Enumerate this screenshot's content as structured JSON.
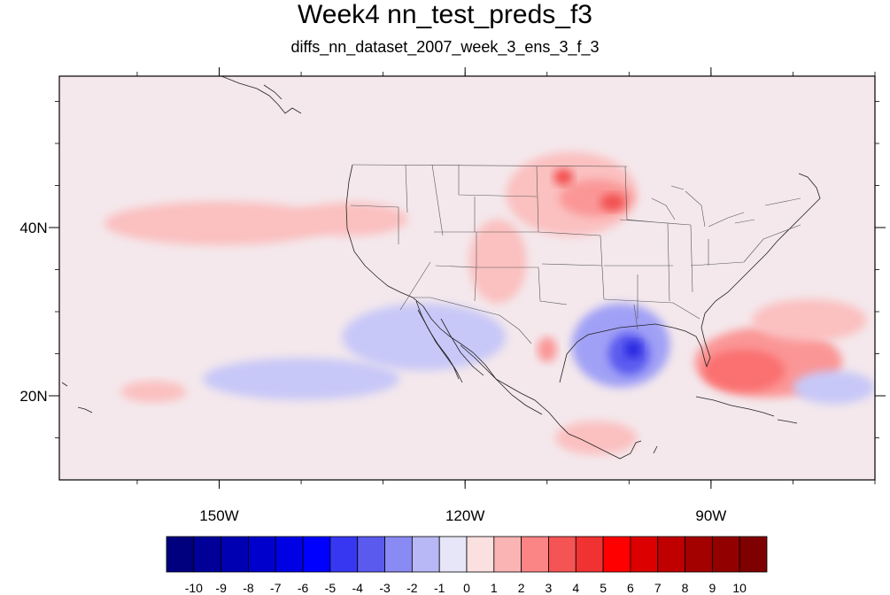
{
  "title": "Week4 nn_test_preds_f3",
  "subtitle": "diffs_nn_dataset_2007_week_3_ens_3_f_3",
  "map": {
    "lon_range": [
      -169.5,
      -70
    ],
    "lat_range": [
      10,
      58
    ],
    "lon_ticks": [
      {
        "value": -150,
        "label": "150W"
      },
      {
        "value": -120,
        "label": "120W"
      },
      {
        "value": -90,
        "label": "90W"
      }
    ],
    "lat_ticks": [
      {
        "value": 40,
        "label": "40N"
      },
      {
        "value": 20,
        "label": "20N"
      }
    ],
    "background_color": "#f4e8ec",
    "blobs": [
      {
        "name": "n-pacific-positive",
        "lon": -150,
        "lat": 40.5,
        "rlon": 14,
        "rlat": 2.6,
        "color": "#fbc0c0"
      },
      {
        "name": "n-pacific-positive-east",
        "lon": -134,
        "lat": 41,
        "rlon": 7,
        "rlat": 2,
        "color": "#fbc0c0"
      },
      {
        "name": "gulf-atlantic-positive",
        "lon": -83,
        "lat": 24,
        "rlon": 9,
        "rlat": 4.2,
        "color": "#fb9696"
      },
      {
        "name": "gulf-atlantic-positive-core",
        "lon": -86,
        "lat": 23,
        "rlon": 5,
        "rlat": 2.5,
        "color": "#fb7070"
      },
      {
        "name": "atlantic-positive-north",
        "lon": -78,
        "lat": 29,
        "rlon": 7,
        "rlat": 2.5,
        "color": "#fbc0c0"
      },
      {
        "name": "northern-plains-positive",
        "lon": -107,
        "lat": 44,
        "rlon": 8,
        "rlat": 5,
        "color": "#fbc0c0"
      },
      {
        "name": "northern-plains-positive-core",
        "lon": -104,
        "lat": 43.5,
        "rlon": 4.5,
        "rlat": 2.2,
        "color": "#fb9696"
      },
      {
        "name": "plains-positive-peak",
        "lon": -102,
        "lat": 43,
        "rlon": 1.5,
        "rlat": 1,
        "color": "#f25050"
      },
      {
        "name": "wyoming-positive-peak",
        "lon": -108,
        "lat": 46,
        "rlon": 1.2,
        "rlat": 1,
        "color": "#f25050"
      },
      {
        "name": "southwest-positive",
        "lon": -116,
        "lat": 36,
        "rlon": 3.5,
        "rlat": 5,
        "color": "#fbc0c0"
      },
      {
        "name": "east-pacific-negative",
        "lon": -125,
        "lat": 27,
        "rlon": 10,
        "rlat": 4,
        "color": "#c8c8f8"
      },
      {
        "name": "texas-mexico-negative",
        "lon": -101,
        "lat": 26,
        "rlon": 6,
        "rlat": 5,
        "color": "#a0a0f6"
      },
      {
        "name": "texas-negative-core",
        "lon": -100,
        "lat": 25,
        "rlon": 2.5,
        "rlat": 2.5,
        "color": "#5a5af0"
      },
      {
        "name": "texas-negative-peak",
        "lon": -99.5,
        "lat": 25.5,
        "rlon": 1,
        "rlat": 1,
        "color": "#2828e0"
      },
      {
        "name": "subtropical-negative",
        "lon": -140,
        "lat": 22,
        "rlon": 12,
        "rlat": 2.5,
        "color": "#c8c8f8"
      },
      {
        "name": "caribbean-negative",
        "lon": -75,
        "lat": 21,
        "rlon": 5,
        "rlat": 2,
        "color": "#c8c8f8"
      },
      {
        "name": "east-pacific-positive-south",
        "lon": -104,
        "lat": 15,
        "rlon": 5,
        "rlat": 2,
        "color": "#fbc0c0"
      },
      {
        "name": "hawaii-positive",
        "lon": -158,
        "lat": 20.5,
        "rlon": 4,
        "rlat": 1.3,
        "color": "#fbc0c0"
      },
      {
        "name": "gulf-california-positive",
        "lon": -110,
        "lat": 25.5,
        "rlon": 1.2,
        "rlat": 1.5,
        "color": "#fb9696"
      }
    ]
  },
  "colorbar": {
    "labels": [
      "-10",
      "-9",
      "-8",
      "-7",
      "-6",
      "-5",
      "-4",
      "-3",
      "-2",
      "-1",
      "0",
      "1",
      "2",
      "3",
      "4",
      "5",
      "6",
      "7",
      "8",
      "9",
      "10"
    ],
    "colors": [
      "#00007f",
      "#000099",
      "#0000b2",
      "#0000cc",
      "#0000e5",
      "#0000ff",
      "#3737f2",
      "#5a5aee",
      "#8a8af4",
      "#b8b8f6",
      "#e6e6f8",
      "#fbe0e0",
      "#fbb4b4",
      "#fb8484",
      "#f45454",
      "#f03232",
      "#ff0000",
      "#dd0000",
      "#c00000",
      "#a30000",
      "#930000",
      "#7f0000"
    ]
  }
}
